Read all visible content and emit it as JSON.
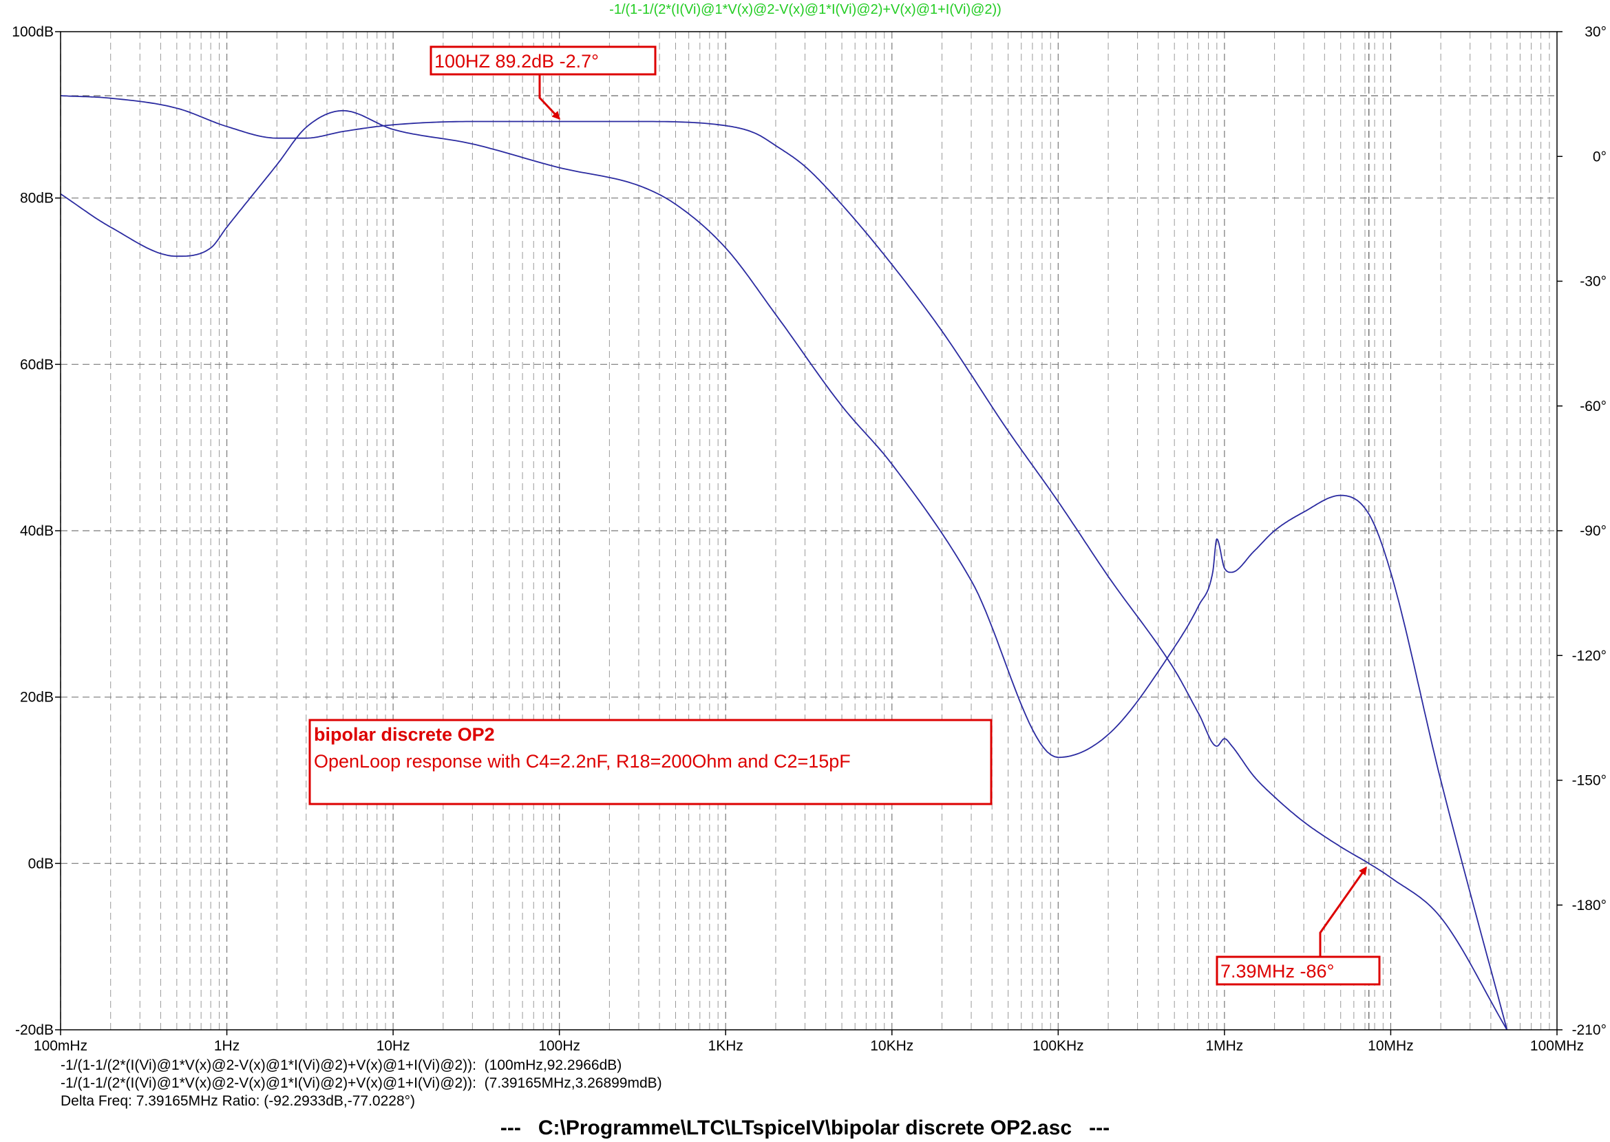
{
  "chart_data": {
    "type": "line",
    "title": "-1/(1-1/(2*(I(Vi)@1*V(x)@2-V(x)@1*I(Vi)@2)+V(x)@1+I(Vi)@2))",
    "title_color": "#22cc22",
    "trace_color": "#2a2aa0",
    "annotation_color": "#dd0000",
    "xscale": "log",
    "xlim": [
      0.1,
      100000000
    ],
    "x_ticks": [
      {
        "value": 0.1,
        "label": "100mHz"
      },
      {
        "value": 1,
        "label": "1Hz"
      },
      {
        "value": 10,
        "label": "10Hz"
      },
      {
        "value": 100,
        "label": "100Hz"
      },
      {
        "value": 1000,
        "label": "1KHz"
      },
      {
        "value": 10000,
        "label": "10KHz"
      },
      {
        "value": 100000,
        "label": "100KHz"
      },
      {
        "value": 1000000,
        "label": "1MHz"
      },
      {
        "value": 10000000,
        "label": "10MHz"
      },
      {
        "value": 100000000,
        "label": "100MHz"
      }
    ],
    "ylim_left": [
      -20,
      100
    ],
    "left_ticks": [
      {
        "value": 100,
        "label": "100dB"
      },
      {
        "value": 80,
        "label": "80dB"
      },
      {
        "value": 60,
        "label": "60dB"
      },
      {
        "value": 40,
        "label": "40dB"
      },
      {
        "value": 20,
        "label": "20dB"
      },
      {
        "value": 0,
        "label": "0dB"
      },
      {
        "value": -20,
        "label": "-20dB"
      }
    ],
    "ylim_right": [
      -210,
      30
    ],
    "right_ticks": [
      {
        "value": 30,
        "label": "30°"
      },
      {
        "value": 0,
        "label": "0°"
      },
      {
        "value": -30,
        "label": "-30°"
      },
      {
        "value": -60,
        "label": "-60°"
      },
      {
        "value": -90,
        "label": "-90°"
      },
      {
        "value": -120,
        "label": "-120°"
      },
      {
        "value": -150,
        "label": "-150°"
      },
      {
        "value": -180,
        "label": "-180°"
      },
      {
        "value": -210,
        "label": "-210°"
      }
    ],
    "grid": true,
    "cursor_freqs": [
      0.1,
      7391650
    ],
    "cursor_level_db": 92.3,
    "series": [
      {
        "axis": "left",
        "points": [
          [
            0.1,
            92.3
          ],
          [
            0.2,
            92.0
          ],
          [
            0.5,
            90.8
          ],
          [
            1,
            88.6
          ],
          [
            2,
            87.2
          ],
          [
            3,
            87.2
          ],
          [
            5,
            88.0
          ],
          [
            10,
            88.8
          ],
          [
            30,
            89.2
          ],
          [
            100,
            89.2
          ],
          [
            300,
            89.2
          ],
          [
            1000,
            88.7
          ],
          [
            1500,
            87.8
          ],
          [
            2000,
            86.3
          ],
          [
            3000,
            83.8
          ],
          [
            5000,
            79.2
          ],
          [
            10000,
            72.0
          ],
          [
            20000,
            64.0
          ],
          [
            50000,
            52.0
          ],
          [
            100000,
            43.5
          ],
          [
            200000,
            34.5
          ],
          [
            500000,
            23.3
          ],
          [
            700000,
            18.0
          ],
          [
            900000,
            14.1
          ],
          [
            1000000,
            15.0
          ],
          [
            1100000,
            14.2
          ],
          [
            1500000,
            10.5
          ],
          [
            2000000,
            8.0
          ],
          [
            3000000,
            5.0
          ],
          [
            5000000,
            2.0
          ],
          [
            7391650,
            0.0
          ],
          [
            10000000,
            -1.7
          ],
          [
            20000000,
            -6.5
          ],
          [
            50000000,
            -20.0
          ]
        ]
      },
      {
        "axis": "right",
        "points": [
          [
            0.1,
            -9.0
          ],
          [
            0.2,
            -17.0
          ],
          [
            0.5,
            -24.0
          ],
          [
            0.8,
            -22.0
          ],
          [
            1,
            -17.0
          ],
          [
            2,
            -2.0
          ],
          [
            3,
            7.0
          ],
          [
            5,
            11.0
          ],
          [
            10,
            6.5
          ],
          [
            30,
            3.0
          ],
          [
            100,
            -2.7
          ],
          [
            300,
            -7.0
          ],
          [
            500,
            -11.5
          ],
          [
            1000,
            -22.0
          ],
          [
            2000,
            -38.0
          ],
          [
            5000,
            -60.0
          ],
          [
            10000,
            -74.0
          ],
          [
            30000,
            -102.0
          ],
          [
            100000,
            -144.5
          ],
          [
            200000,
            -139.0
          ],
          [
            500000,
            -118.0
          ],
          [
            700000,
            -108.0
          ],
          [
            850000,
            -100.0
          ],
          [
            900000,
            -92.0
          ],
          [
            1000000,
            -99.0
          ],
          [
            1100000,
            -100.0
          ],
          [
            1500000,
            -95.0
          ],
          [
            2000000,
            -90.0
          ],
          [
            3000000,
            -85.5
          ],
          [
            5000000,
            -81.5
          ],
          [
            7391650,
            -86.0
          ],
          [
            10000000,
            -100.0
          ],
          [
            20000000,
            -150.0
          ],
          [
            50000000,
            -210.0
          ]
        ]
      }
    ],
    "annotations": [
      {
        "label": "100HZ  89.2dB -2.7°",
        "target": [
          100,
          89.2
        ]
      },
      {
        "label": "7.39MHz  -86°",
        "target": [
          7391650,
          0.0
        ]
      }
    ],
    "textbox": {
      "title": "bipolar discrete OP2",
      "text": "OpenLoop response with C4=2.2nF, R18=200Ohm and C2=15pF"
    }
  },
  "cursor_info": {
    "line1": "-1/(1-1/(2*(I(Vi)@1*V(x)@2-V(x)@1*I(Vi)@2)+V(x)@1+I(Vi)@2)):  (100mHz,92.2966dB)",
    "line2": "-1/(1-1/(2*(I(Vi)@1*V(x)@2-V(x)@1*I(Vi)@2)+V(x)@1+I(Vi)@2)):  (7.39165MHz,3.26899mdB)",
    "line3": "Delta Freq: 7.39165MHz Ratio: (-92.2933dB,-77.0228°)"
  },
  "file_path": "---   C:\\Programme\\LTC\\LTspiceIV\\bipolar discrete OP2.asc   ---"
}
